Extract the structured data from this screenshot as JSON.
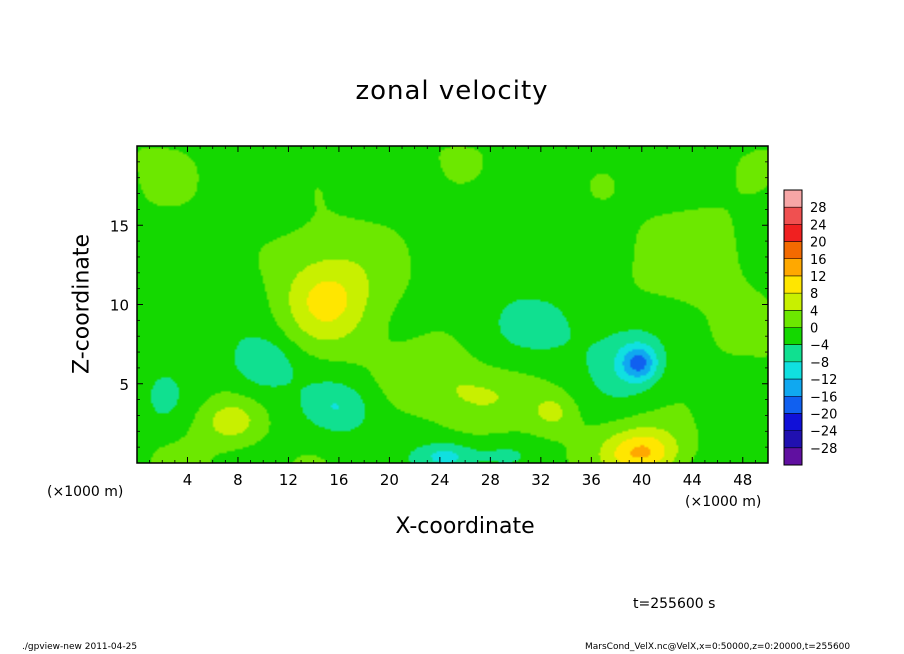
{
  "chart_data": {
    "type": "heatmap",
    "title": "zonal velocity",
    "xlabel": "X-coordinate",
    "ylabel": "Z-coordinate",
    "x_unit": "(×1000 m)",
    "x_unit_right": "(×1000 m)",
    "xlim": [
      0,
      50
    ],
    "ylim": [
      0,
      20
    ],
    "x_ticks": [
      4,
      8,
      12,
      16,
      20,
      24,
      28,
      32,
      36,
      40,
      44,
      48
    ],
    "y_ticks": [
      5,
      10,
      15
    ],
    "colorbar": {
      "levels": [
        28,
        24,
        20,
        16,
        12,
        8,
        4,
        0,
        -4,
        -8,
        -12,
        -16,
        -20,
        -24,
        -28
      ],
      "level_labels": [
        "28",
        "24",
        "20",
        "16",
        "12",
        "8",
        "4",
        "0",
        "−4",
        "−8",
        "−12",
        "−16",
        "−20",
        "−24",
        "−28"
      ],
      "colors": [
        "#f7a6a6",
        "#f05050",
        "#f02020",
        "#f36a00",
        "#ffa800",
        "#ffe600",
        "#c8f000",
        "#6ce800",
        "#14d800",
        "#10e090",
        "#10e0e0",
        "#10a8f0",
        "#1060f0",
        "#1010d8",
        "#2010b0",
        "#6010a0"
      ]
    },
    "field_features": [
      {
        "x": 40,
        "z": 0.6,
        "value": 11,
        "sx": 2.8,
        "sz": 1.3
      },
      {
        "x": 41,
        "z": 1.6,
        "value": 4,
        "sx": 3.5,
        "sz": 1.8
      },
      {
        "x": 15,
        "z": 10.2,
        "value": 7,
        "sx": 3.2,
        "sz": 2.6
      },
      {
        "x": 16,
        "z": 12,
        "value": 3,
        "sx": 5,
        "sz": 4
      },
      {
        "x": 7.5,
        "z": 2.6,
        "value": 7,
        "sx": 2.2,
        "sz": 1.3
      },
      {
        "x": 27,
        "z": 4.2,
        "value": 5,
        "sx": 3.5,
        "sz": 1.6
      },
      {
        "x": 33,
        "z": 3.2,
        "value": 5,
        "sx": 1.7,
        "sz": 1.2
      },
      {
        "x": 24,
        "z": 5.8,
        "value": 3,
        "sx": 3,
        "sz": 1.8
      },
      {
        "x": 45,
        "z": 13.5,
        "value": 3.5,
        "sx": 4,
        "sz": 3
      },
      {
        "x": 39.8,
        "z": 6.3,
        "value": -12,
        "sx": 1.4,
        "sz": 1.1
      },
      {
        "x": 39,
        "z": 6.6,
        "value": -5,
        "sx": 3,
        "sz": 2.4
      },
      {
        "x": 24.5,
        "z": 0.4,
        "value": -9,
        "sx": 2.3,
        "sz": 0.9
      },
      {
        "x": 29,
        "z": 0.5,
        "value": -4,
        "sx": 2.5,
        "sz": 0.9
      },
      {
        "x": 10,
        "z": 6.2,
        "value": -6,
        "sx": 2.5,
        "sz": 1.7
      },
      {
        "x": 16,
        "z": 3.5,
        "value": -6,
        "sx": 2.6,
        "sz": 1.6
      },
      {
        "x": 2,
        "z": 4,
        "value": -4,
        "sx": 2,
        "sz": 2.2
      },
      {
        "x": 31,
        "z": 8.5,
        "value": -3,
        "sx": 6,
        "sz": 2.5
      },
      {
        "x": 8,
        "z": 14,
        "value": -2,
        "sx": 4,
        "sz": 4
      },
      {
        "x": 29,
        "z": 16,
        "value": -1.5,
        "sx": 6,
        "sz": 3
      }
    ]
  },
  "time_label": "t=255600 s",
  "footer_left": "./gpview-new   2011-04-25",
  "footer_right": "MarsCond_VelX.nc@VelX,x=0:50000,z=0:20000,t=255600"
}
